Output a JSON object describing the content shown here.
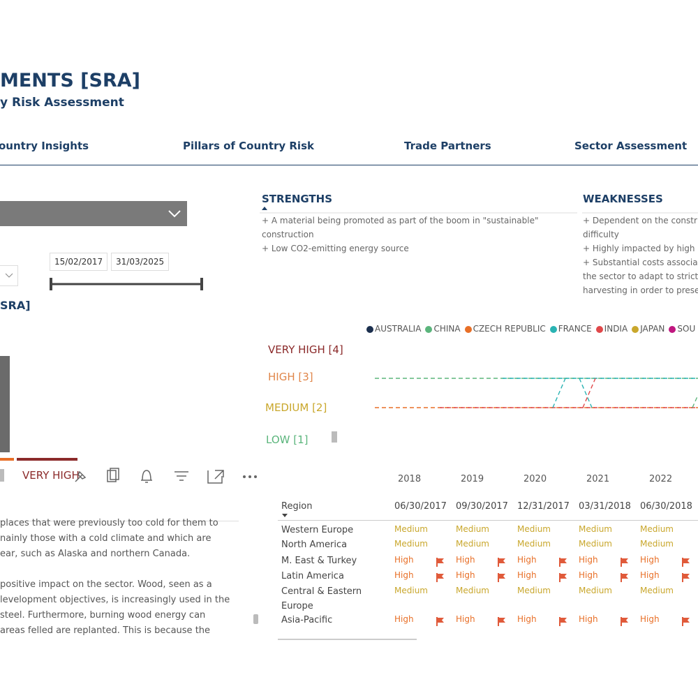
{
  "header": {
    "title": "MENTS [SRA]",
    "subtitle": "y Risk Assessment"
  },
  "nav": [
    "ountry Insights",
    "Pillars of Country Risk",
    "Trade Partners",
    "Sector Assessment"
  ],
  "filters": {
    "start_date": "15/02/2017",
    "end_date": "31/03/2025"
  },
  "left_panel": {
    "heading": "SRA]",
    "bar_label": "VERY HIGH",
    "text_lines": [
      "places that were previously too cold for them to",
      "nainly those with a cold climate and which are",
      "ear, such as Alaska and northern Canada.",
      "positive impact on the sector. Wood, seen as a",
      "levelopment objectives, is increasingly used in the",
      "steel. Furthermore, burning wood energy can",
      "areas felled are replanted. This is because the"
    ]
  },
  "strengths": {
    "title": "STRENGTHS",
    "lines": [
      "+ A material being promoted as part of the boom in \"sustainable\"",
      "construction",
      "+ Low CO2-emitting energy source"
    ]
  },
  "weaknesses": {
    "title": "WEAKNESSES",
    "lines": [
      "+ Dependent on the constr",
      "difficulty",
      "+ Highly impacted by high",
      "+ Substantial costs associat",
      "the sector to adapt to strict",
      "harvesting in order to prese"
    ]
  },
  "trend": {
    "legend": [
      {
        "name": "AUSTRALIA",
        "color": "#1b2f4e"
      },
      {
        "name": "CHINA",
        "color": "#5bb57c"
      },
      {
        "name": "CZECH REPUBLIC",
        "color": "#e86f27"
      },
      {
        "name": "FRANCE",
        "color": "#2ab3b3"
      },
      {
        "name": "INDIA",
        "color": "#e0484a"
      },
      {
        "name": "JAPAN",
        "color": "#c9a72c"
      },
      {
        "name": "SOU",
        "color": "#c0167f"
      }
    ],
    "levels": [
      {
        "label": "VERY HIGH [4]",
        "color": "#8b2a2a"
      },
      {
        "label": "HIGH [3]",
        "color": "#e0864a"
      },
      {
        "label": "MEDIUM [2]",
        "color": "#c9a72c"
      },
      {
        "label": "LOW [1]",
        "color": "#5bb57c"
      }
    ],
    "years": [
      "2018",
      "2019",
      "2020",
      "2021",
      "2022"
    ]
  },
  "table": {
    "header": "Region",
    "columns": [
      "06/30/2017",
      "09/30/2017",
      "12/31/2017",
      "03/31/2018",
      "06/30/2018"
    ],
    "rows": [
      {
        "region": "Western Europe",
        "values": [
          "Medium",
          "Medium",
          "Medium",
          "Medium",
          "Medium"
        ]
      },
      {
        "region": "North America",
        "values": [
          "Medium",
          "Medium",
          "Medium",
          "Medium",
          "Medium"
        ]
      },
      {
        "region": "M. East & Turkey",
        "values": [
          "High",
          "High",
          "High",
          "High",
          "High"
        ]
      },
      {
        "region": "Latin America",
        "values": [
          "High",
          "High",
          "High",
          "High",
          "High"
        ]
      },
      {
        "region": "Central & Eastern Europe",
        "values": [
          "Medium",
          "Medium",
          "Medium",
          "Medium",
          "Medium"
        ]
      },
      {
        "region": "Asia-Pacific",
        "values": [
          "High",
          "High",
          "High",
          "High",
          "High"
        ]
      }
    ]
  }
}
